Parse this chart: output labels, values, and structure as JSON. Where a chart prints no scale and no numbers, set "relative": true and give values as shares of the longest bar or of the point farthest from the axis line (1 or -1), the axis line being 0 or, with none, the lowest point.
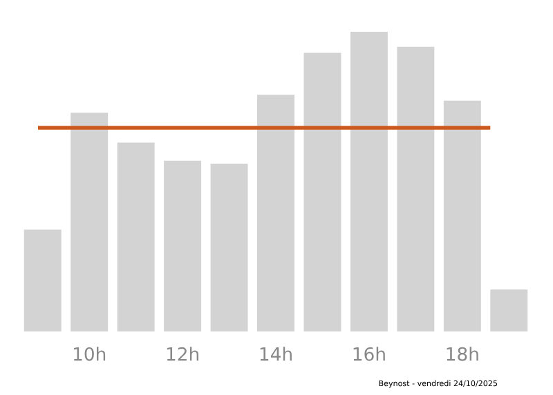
{
  "chart_data": {
    "type": "bar",
    "relative": true,
    "categories": [
      null,
      "10h",
      null,
      "12h",
      null,
      "14h",
      null,
      "16h",
      null,
      "18h",
      null
    ],
    "values": [
      0.34,
      0.73,
      0.63,
      0.57,
      0.56,
      0.79,
      0.93,
      1,
      0.95,
      0.77,
      0.14
    ],
    "color": "#d3d3d3",
    "ref_lines": [
      {
        "axis": "y",
        "value": 0.68,
        "color": "#cc5a1e"
      }
    ],
    "annotations": [
      "Beynost - vendredi 24/10/2025"
    ],
    "grid": false,
    "legend": false
  }
}
